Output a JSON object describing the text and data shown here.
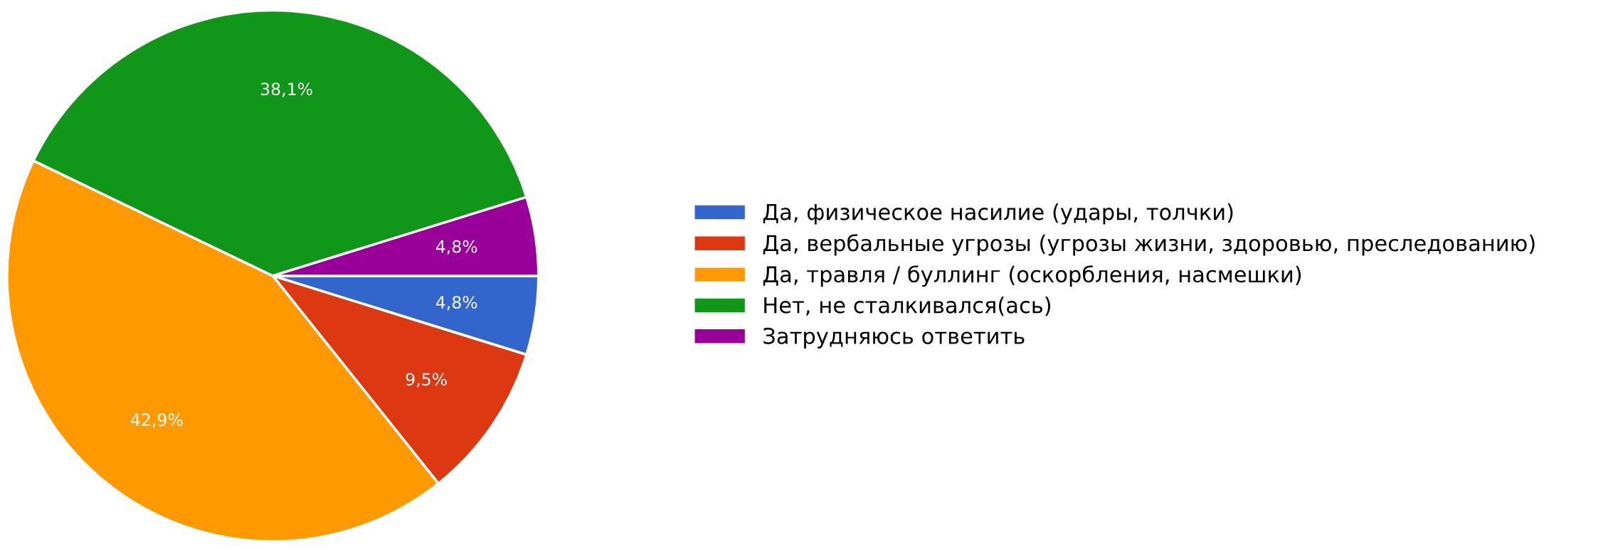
{
  "chart_data": {
    "type": "pie",
    "categories": [
      "Да, физическое насилие (удары, толчки)",
      "Да, вербальные угрозы (угрозы жизни, здоровью, преследованию)",
      "Да, травля / буллинг (оскорбления, насмешки)",
      "Нет, не сталкивался(ась)",
      "Затрудняюсь ответить"
    ],
    "values": [
      4.8,
      9.5,
      42.9,
      38.1,
      4.8
    ],
    "colors": [
      "#3366cc",
      "#dc3912",
      "#ff9900",
      "#109618",
      "#990099"
    ],
    "value_labels": [
      "4,8%",
      "9,5%",
      "42,9%",
      "38,1%",
      "4,8%"
    ],
    "legend": "right"
  }
}
